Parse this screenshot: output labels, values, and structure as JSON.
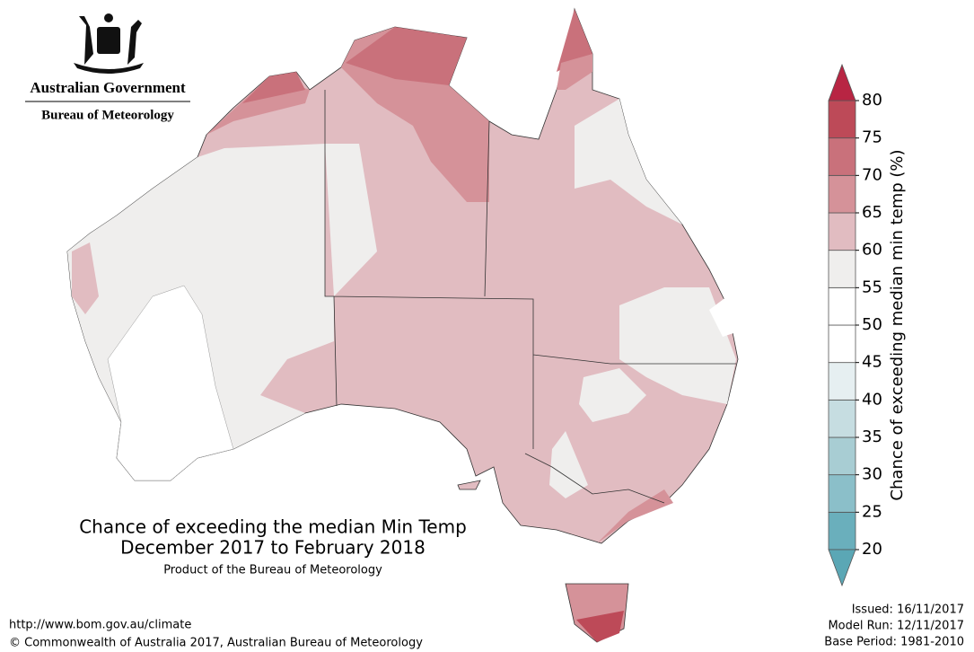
{
  "header": {
    "agency": "Australian Government",
    "bureau": "Bureau of Meteorology"
  },
  "title": {
    "line1": "Chance of exceeding the median Min Temp",
    "line2": "December 2017 to February 2018",
    "product": "Product of the Bureau of Meteorology"
  },
  "colorbar": {
    "label": "Chance of exceeding median min temp (%)",
    "ticks": [
      20,
      25,
      30,
      35,
      40,
      45,
      50,
      55,
      60,
      65,
      70,
      75,
      80
    ],
    "colors": [
      "#6aafbc",
      "#8bbfc9",
      "#a8cdd3",
      "#c6dde1",
      "#e6eff1",
      "#ffffff",
      "#ffffff",
      "#efeeed",
      "#e1bcc1",
      "#d59299",
      "#c9717b",
      "#bd4a58"
    ],
    "under_color": "#5ba7b5",
    "over_color": "#b82543"
  },
  "footer": {
    "url": "http://www.bom.gov.au/climate",
    "copyright": "© Commonwealth of Australia 2017, Australian Bureau of Meteorology",
    "issued": "Issued: 16/11/2017",
    "model_run": "Model Run: 12/11/2017",
    "base_period": "Base Period: 1981-2010"
  }
}
